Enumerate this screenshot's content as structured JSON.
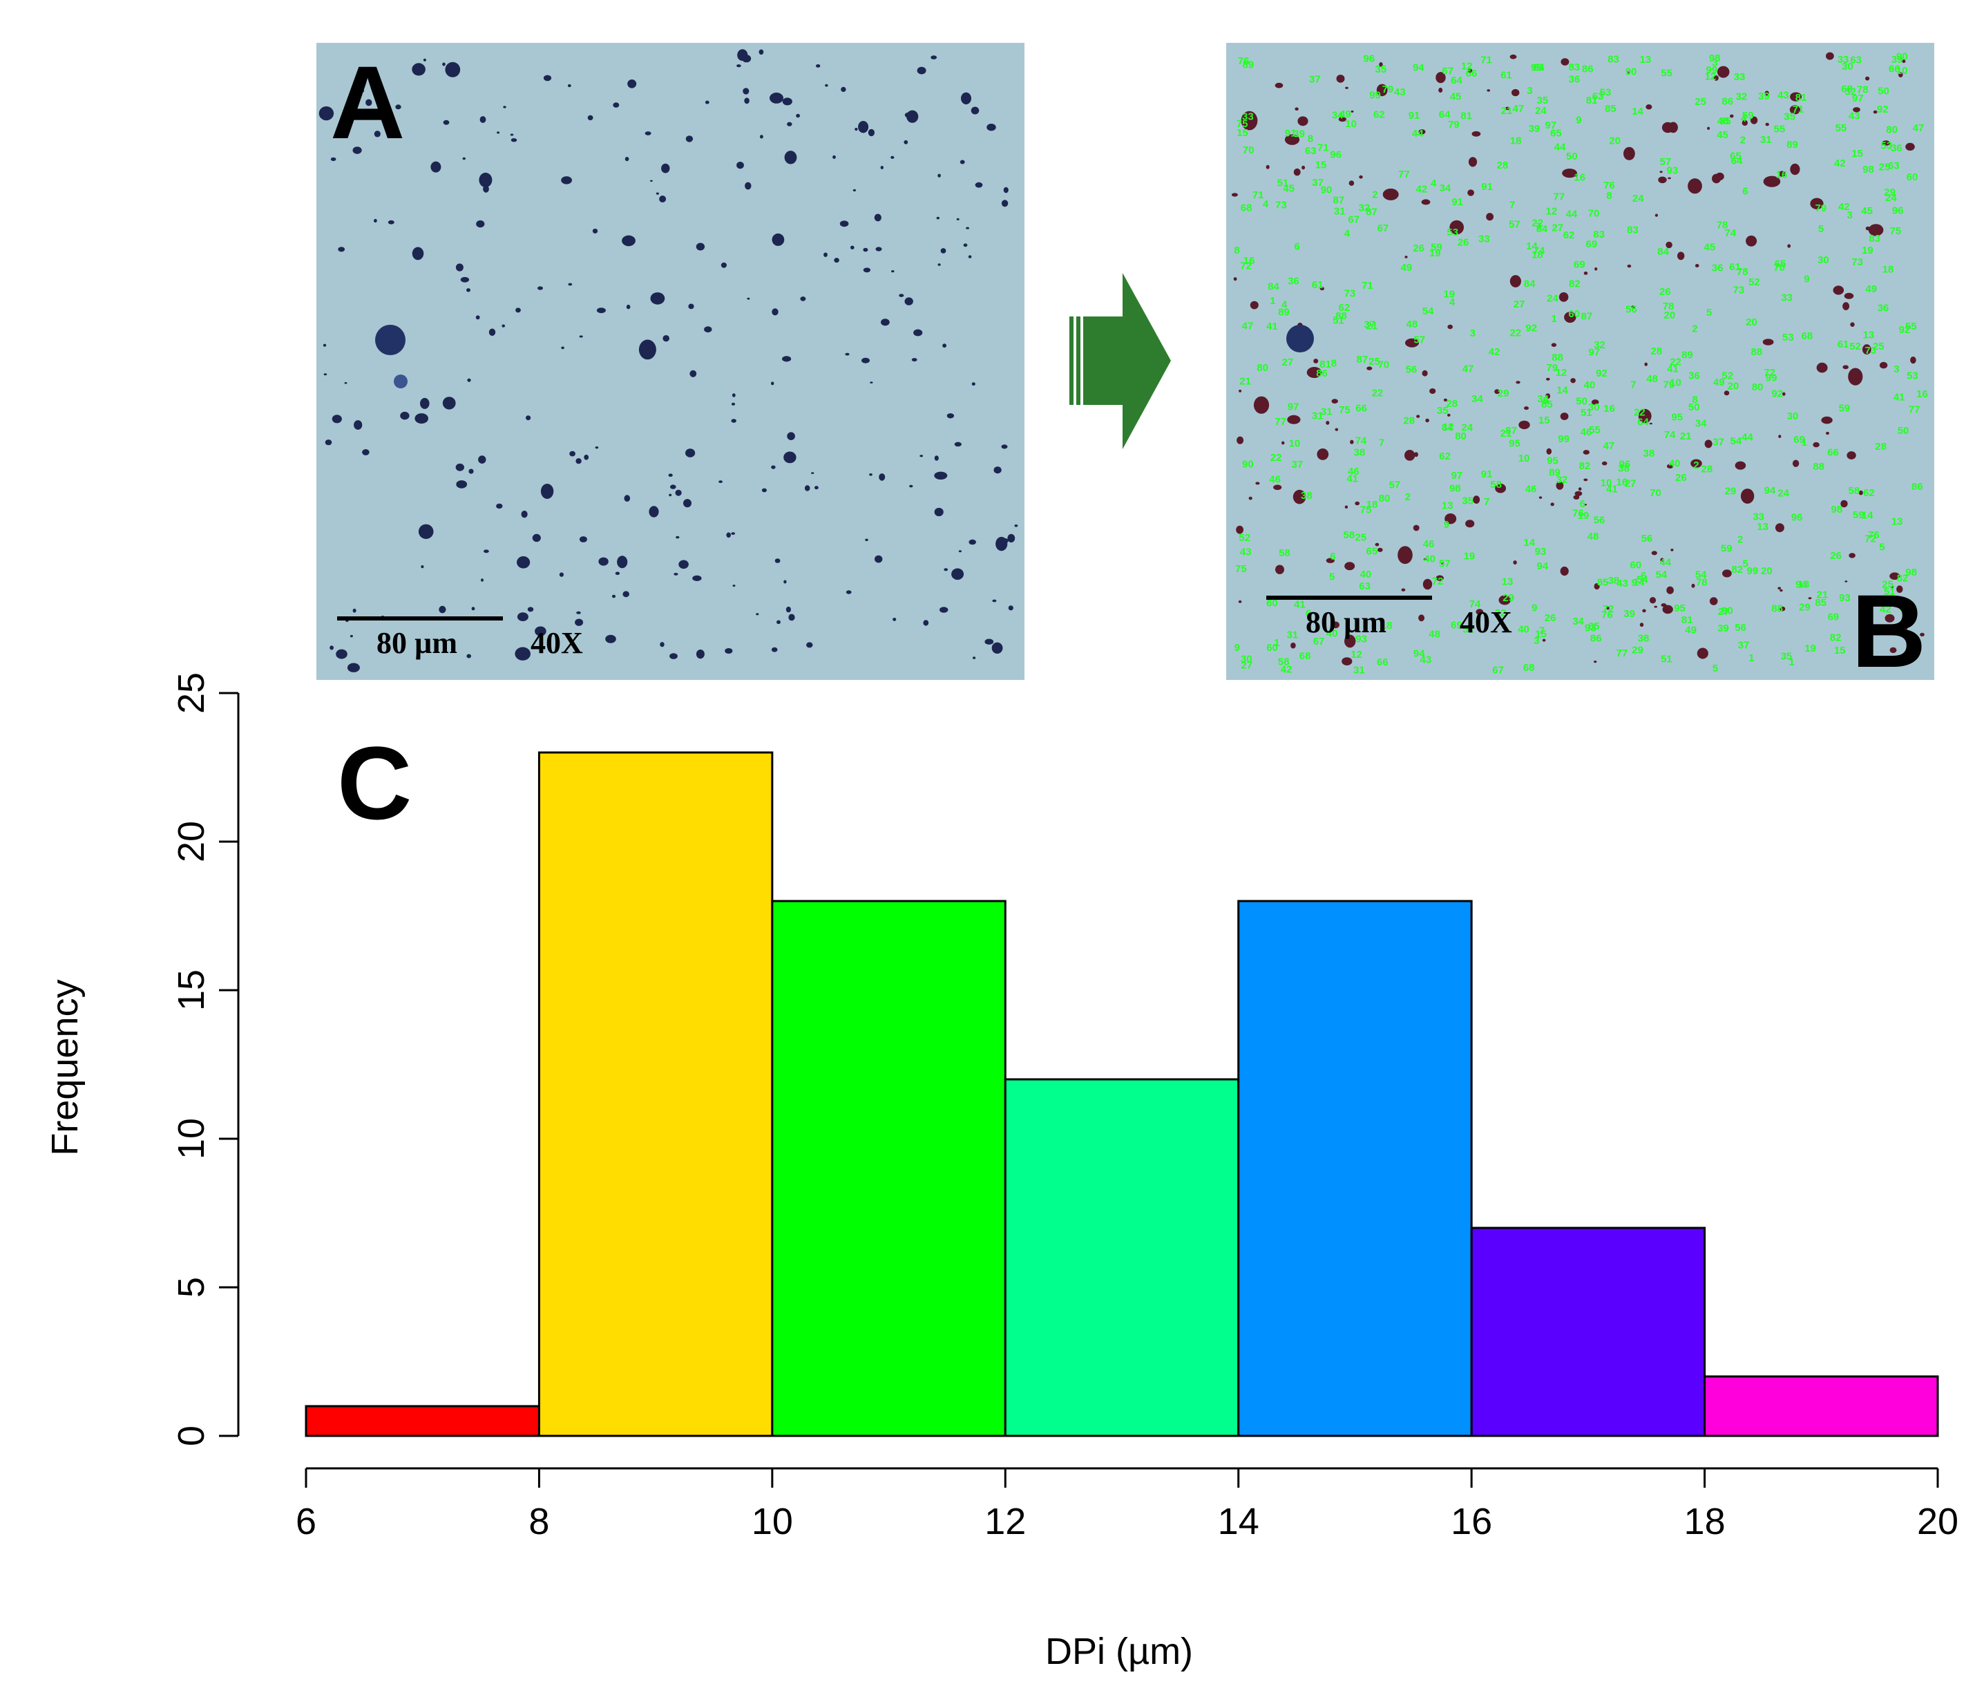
{
  "colors": {
    "background": "#ffffff",
    "micrograph_bg": "#a9c7d2",
    "particle": "#1c2650",
    "label_green": "#22ff22",
    "arrow": "#2e7d2e",
    "bar_outline": "#000000"
  },
  "panels": {
    "a": {
      "letter": "A",
      "scale_label": "80 µm",
      "magnification": "40X"
    },
    "b": {
      "letter": "B",
      "scale_label": "80 µm",
      "magnification": "40X",
      "particle_labels": [
        "1",
        "2",
        "3",
        "4",
        "5",
        "6",
        "7",
        "8",
        "9",
        "10",
        "12",
        "13",
        "14",
        "15",
        "16",
        "18",
        "19",
        "20",
        "21",
        "22",
        "24",
        "25",
        "26",
        "27",
        "28",
        "29",
        "30",
        "31",
        "32",
        "33",
        "34",
        "35",
        "36",
        "37",
        "38",
        "39",
        "40",
        "41",
        "42",
        "43",
        "44",
        "45",
        "46",
        "47",
        "48",
        "49",
        "50",
        "51",
        "52",
        "53",
        "54",
        "55",
        "56",
        "57",
        "58",
        "59",
        "60",
        "61",
        "62",
        "63",
        "64",
        "65",
        "66",
        "67",
        "68",
        "69",
        "70",
        "71",
        "72",
        "73",
        "74",
        "75",
        "76",
        "77",
        "78",
        "79",
        "80",
        "81",
        "82",
        "83",
        "84",
        "85",
        "86",
        "87",
        "88",
        "89",
        "90",
        "91",
        "92",
        "93",
        "94",
        "95",
        "96",
        "97",
        "98",
        "99"
      ]
    },
    "c": {
      "letter": "C"
    }
  },
  "arrow_icon": "right-arrow-icon",
  "chart_data": {
    "type": "bar",
    "title": "",
    "xlabel": "DPi (µm)",
    "ylabel": "Frequency",
    "bins": [
      {
        "from": 6,
        "to": 8,
        "value": 1,
        "color": "#ff0000"
      },
      {
        "from": 8,
        "to": 10,
        "value": 23,
        "color": "#ffdd00"
      },
      {
        "from": 10,
        "to": 12,
        "value": 18,
        "color": "#00ff00"
      },
      {
        "from": 12,
        "to": 14,
        "value": 12,
        "color": "#00ff8c"
      },
      {
        "from": 14,
        "to": 16,
        "value": 18,
        "color": "#0090ff"
      },
      {
        "from": 16,
        "to": 18,
        "value": 7,
        "color": "#5a00ff"
      },
      {
        "from": 18,
        "to": 20,
        "value": 2,
        "color": "#ff00dd"
      }
    ],
    "xlim": [
      6,
      20
    ],
    "ylim": [
      0,
      25
    ],
    "xticks": [
      "6",
      "8",
      "10",
      "12",
      "14",
      "16",
      "18",
      "20"
    ],
    "yticks": [
      "0",
      "5",
      "10",
      "15",
      "20",
      "25"
    ],
    "grid": false,
    "legend": "none"
  }
}
